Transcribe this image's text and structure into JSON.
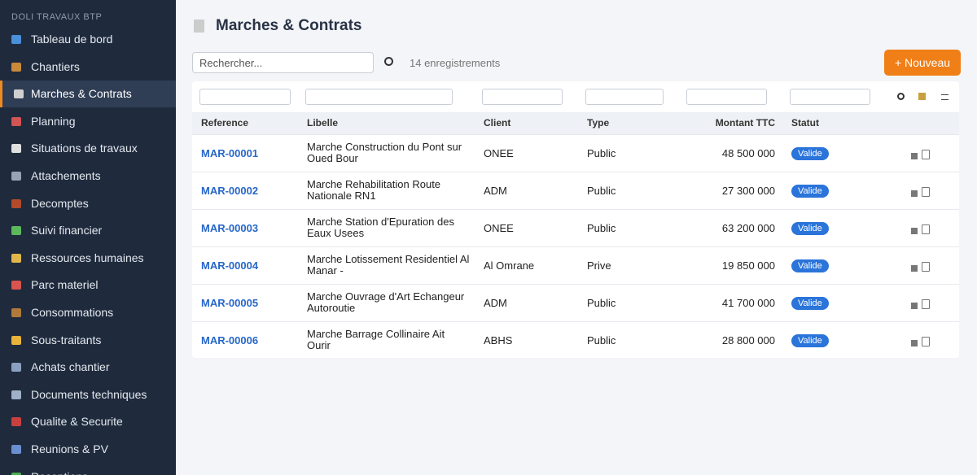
{
  "sidebar": {
    "brand": "DOLI TRAVAUX BTP",
    "items": [
      "Tableau de bord",
      "Chantiers",
      "Marches & Contrats",
      "Planning",
      "Situations de travaux",
      "Attachements",
      "Decomptes",
      "Suivi financier",
      "Ressources humaines",
      "Parc materiel",
      "Consommations",
      "Sous-traitants",
      "Achats chantier",
      "Documents techniques",
      "Qualite & Securite",
      "Reunions & PV",
      "Receptions"
    ],
    "active": 2
  },
  "header": {
    "title": "Marches & Contrats"
  },
  "toolbar": {
    "search_placeholder": "Rechercher...",
    "count": "14 enregistrements",
    "new_button": "+ Nouveau"
  },
  "table": {
    "columns": [
      "Reference",
      "Libelle",
      "Client",
      "Type",
      "Montant TTC",
      "Statut"
    ],
    "rows": [
      [
        "MAR-00001",
        "Marche Construction du Pont sur Oued Bour",
        "ONEE",
        "Public",
        "48 500 000",
        "Valide"
      ],
      [
        "MAR-00002",
        "Marche Rehabilitation Route Nationale RN1",
        "ADM",
        "Public",
        "27 300 000",
        "Valide"
      ],
      [
        "MAR-00003",
        "Marche Station d'Epuration des Eaux Usees",
        "ONEE",
        "Public",
        "63 200 000",
        "Valide"
      ],
      [
        "MAR-00004",
        "Marche Lotissement Residentiel Al Manar -",
        "Al Omrane",
        "Prive",
        "19 850 000",
        "Valide"
      ],
      [
        "MAR-00005",
        "Marche Ouvrage d'Art Echangeur Autoroutie",
        "ADM",
        "Public",
        "41 700 000",
        "Valide"
      ],
      [
        "MAR-00006",
        "Marche Barrage Collinaire Ait Ourir",
        "ABHS",
        "Public",
        "28 800 000",
        "Valide"
      ]
    ]
  }
}
